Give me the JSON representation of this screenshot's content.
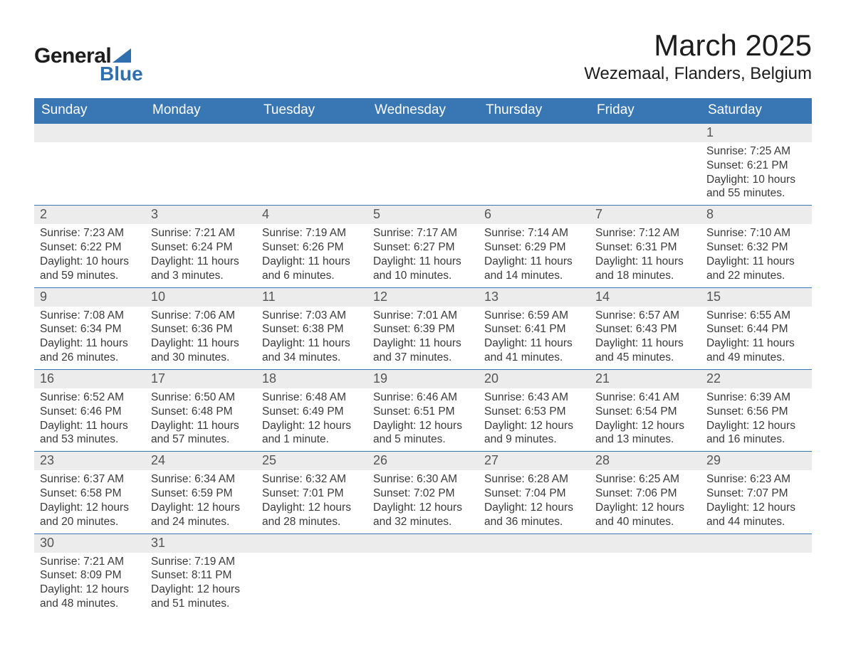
{
  "logo": {
    "word1": "General",
    "word2": "Blue"
  },
  "title": "March 2025",
  "subtitle": "Wezemaal, Flanders, Belgium",
  "calendar": {
    "header_bg": "#3876b4",
    "header_fg": "#ffffff",
    "dayrow_bg": "#ececec",
    "rule_color": "#3876b4",
    "text_color": "#3a3a3a",
    "font_family": "Arial",
    "title_fontsize": 42,
    "subtitle_fontsize": 24,
    "header_fontsize": 19,
    "daynum_fontsize": 18,
    "body_fontsize": 15.5,
    "columns": [
      "Sunday",
      "Monday",
      "Tuesday",
      "Wednesday",
      "Thursday",
      "Friday",
      "Saturday"
    ],
    "labels": {
      "sunrise": "Sunrise:",
      "sunset": "Sunset:",
      "daylight": "Daylight:"
    },
    "weeks": [
      [
        null,
        null,
        null,
        null,
        null,
        null,
        {
          "n": "1",
          "sr": "7:25 AM",
          "ss": "6:21 PM",
          "dl": "10 hours and 55 minutes."
        }
      ],
      [
        {
          "n": "2",
          "sr": "7:23 AM",
          "ss": "6:22 PM",
          "dl": "10 hours and 59 minutes."
        },
        {
          "n": "3",
          "sr": "7:21 AM",
          "ss": "6:24 PM",
          "dl": "11 hours and 3 minutes."
        },
        {
          "n": "4",
          "sr": "7:19 AM",
          "ss": "6:26 PM",
          "dl": "11 hours and 6 minutes."
        },
        {
          "n": "5",
          "sr": "7:17 AM",
          "ss": "6:27 PM",
          "dl": "11 hours and 10 minutes."
        },
        {
          "n": "6",
          "sr": "7:14 AM",
          "ss": "6:29 PM",
          "dl": "11 hours and 14 minutes."
        },
        {
          "n": "7",
          "sr": "7:12 AM",
          "ss": "6:31 PM",
          "dl": "11 hours and 18 minutes."
        },
        {
          "n": "8",
          "sr": "7:10 AM",
          "ss": "6:32 PM",
          "dl": "11 hours and 22 minutes."
        }
      ],
      [
        {
          "n": "9",
          "sr": "7:08 AM",
          "ss": "6:34 PM",
          "dl": "11 hours and 26 minutes."
        },
        {
          "n": "10",
          "sr": "7:06 AM",
          "ss": "6:36 PM",
          "dl": "11 hours and 30 minutes."
        },
        {
          "n": "11",
          "sr": "7:03 AM",
          "ss": "6:38 PM",
          "dl": "11 hours and 34 minutes."
        },
        {
          "n": "12",
          "sr": "7:01 AM",
          "ss": "6:39 PM",
          "dl": "11 hours and 37 minutes."
        },
        {
          "n": "13",
          "sr": "6:59 AM",
          "ss": "6:41 PM",
          "dl": "11 hours and 41 minutes."
        },
        {
          "n": "14",
          "sr": "6:57 AM",
          "ss": "6:43 PM",
          "dl": "11 hours and 45 minutes."
        },
        {
          "n": "15",
          "sr": "6:55 AM",
          "ss": "6:44 PM",
          "dl": "11 hours and 49 minutes."
        }
      ],
      [
        {
          "n": "16",
          "sr": "6:52 AM",
          "ss": "6:46 PM",
          "dl": "11 hours and 53 minutes."
        },
        {
          "n": "17",
          "sr": "6:50 AM",
          "ss": "6:48 PM",
          "dl": "11 hours and 57 minutes."
        },
        {
          "n": "18",
          "sr": "6:48 AM",
          "ss": "6:49 PM",
          "dl": "12 hours and 1 minute."
        },
        {
          "n": "19",
          "sr": "6:46 AM",
          "ss": "6:51 PM",
          "dl": "12 hours and 5 minutes."
        },
        {
          "n": "20",
          "sr": "6:43 AM",
          "ss": "6:53 PM",
          "dl": "12 hours and 9 minutes."
        },
        {
          "n": "21",
          "sr": "6:41 AM",
          "ss": "6:54 PM",
          "dl": "12 hours and 13 minutes."
        },
        {
          "n": "22",
          "sr": "6:39 AM",
          "ss": "6:56 PM",
          "dl": "12 hours and 16 minutes."
        }
      ],
      [
        {
          "n": "23",
          "sr": "6:37 AM",
          "ss": "6:58 PM",
          "dl": "12 hours and 20 minutes."
        },
        {
          "n": "24",
          "sr": "6:34 AM",
          "ss": "6:59 PM",
          "dl": "12 hours and 24 minutes."
        },
        {
          "n": "25",
          "sr": "6:32 AM",
          "ss": "7:01 PM",
          "dl": "12 hours and 28 minutes."
        },
        {
          "n": "26",
          "sr": "6:30 AM",
          "ss": "7:02 PM",
          "dl": "12 hours and 32 minutes."
        },
        {
          "n": "27",
          "sr": "6:28 AM",
          "ss": "7:04 PM",
          "dl": "12 hours and 36 minutes."
        },
        {
          "n": "28",
          "sr": "6:25 AM",
          "ss": "7:06 PM",
          "dl": "12 hours and 40 minutes."
        },
        {
          "n": "29",
          "sr": "6:23 AM",
          "ss": "7:07 PM",
          "dl": "12 hours and 44 minutes."
        }
      ],
      [
        {
          "n": "30",
          "sr": "7:21 AM",
          "ss": "8:09 PM",
          "dl": "12 hours and 48 minutes."
        },
        {
          "n": "31",
          "sr": "7:19 AM",
          "ss": "8:11 PM",
          "dl": "12 hours and 51 minutes."
        },
        null,
        null,
        null,
        null,
        null
      ]
    ]
  }
}
